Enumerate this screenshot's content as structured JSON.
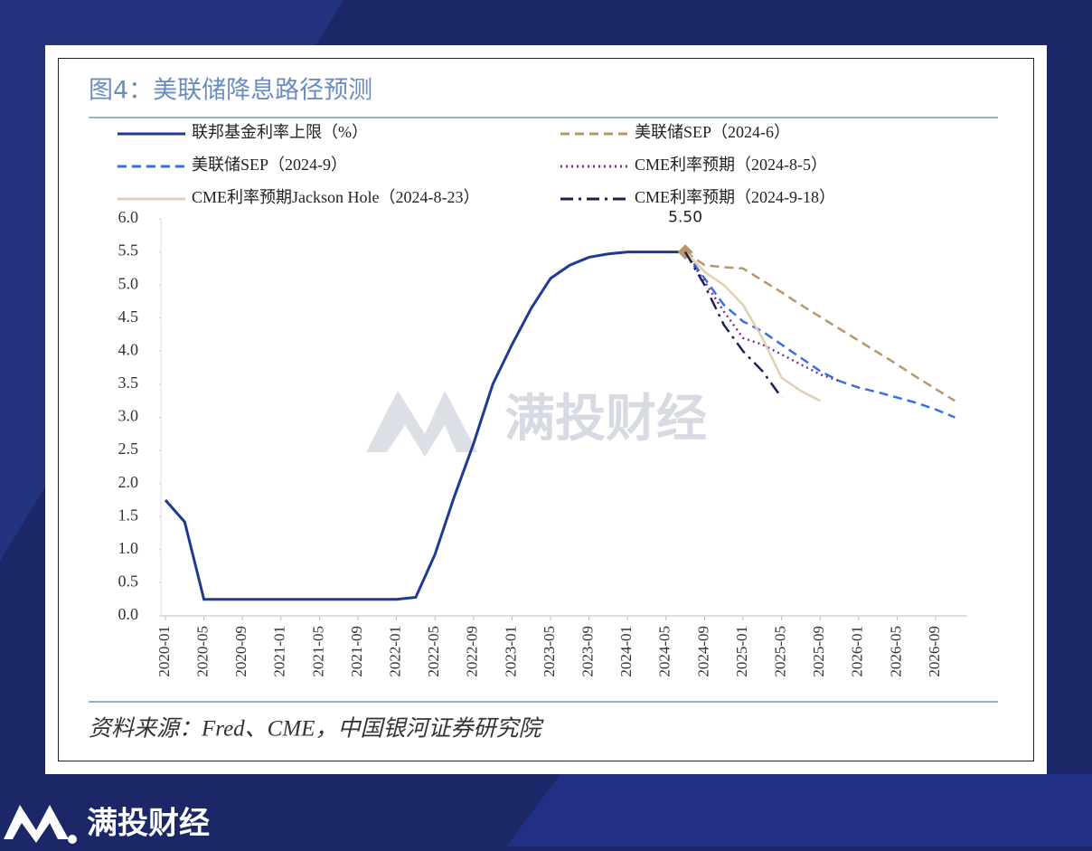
{
  "chart_data": {
    "type": "line",
    "title": "图4：美联储降息路径预测",
    "source": "资料来源：Fred、CME，中国银河证券研究院",
    "watermark": "满投财经",
    "brand": "满投财经",
    "categories": [
      "2020-01",
      null,
      "2020-05",
      null,
      "2020-09",
      null,
      "2021-01",
      null,
      "2021-05",
      null,
      "2021-09",
      null,
      "2022-01",
      null,
      "2022-05",
      null,
      "2022-09",
      null,
      "2023-01",
      null,
      "2023-05",
      null,
      "2023-09",
      null,
      "2024-01",
      null,
      "2024-05",
      null,
      "2024-09",
      null,
      "2025-01",
      null,
      "2025-05",
      null,
      "2025-09",
      null,
      "2026-01",
      null,
      "2026-05",
      null,
      "2026-09",
      null
    ],
    "ylim": [
      0,
      6
    ],
    "yticks": [
      {
        "value": 0,
        "label": "0.0"
      },
      {
        "value": 0.5,
        "label": "0.5"
      },
      {
        "value": 1,
        "label": "1.0"
      },
      {
        "value": 1.5,
        "label": "1.5"
      },
      {
        "value": 2,
        "label": "2.0"
      },
      {
        "value": 2.5,
        "label": "2.5"
      },
      {
        "value": 3,
        "label": "3.0"
      },
      {
        "value": 3.5,
        "label": "3.5"
      },
      {
        "value": 4,
        "label": "4.0"
      },
      {
        "value": 4.5,
        "label": "4.5"
      },
      {
        "value": 5,
        "label": "5.0"
      },
      {
        "value": 5.5,
        "label": "5.5"
      },
      {
        "value": 6,
        "label": "6.0"
      }
    ],
    "series": [
      {
        "name": "联邦基金利率上限（%）",
        "color": "#1f3a93",
        "dash": "solid",
        "values": [
          1.75,
          1.42,
          0.25,
          0.25,
          0.25,
          0.25,
          0.25,
          0.25,
          0.25,
          0.25,
          0.25,
          0.25,
          0.25,
          0.28,
          0.93,
          1.8,
          2.6,
          3.5,
          4.1,
          4.65,
          5.1,
          5.3,
          5.42,
          5.47,
          5.5,
          5.5,
          5.5,
          5.5,
          null,
          null,
          null,
          null,
          null,
          null,
          null,
          null,
          null,
          null,
          null,
          null,
          null,
          null
        ],
        "value_labels": [
          null,
          null,
          null,
          null,
          null,
          null,
          null,
          null,
          null,
          null,
          null,
          null,
          null,
          null,
          null,
          null,
          null,
          null,
          null,
          null,
          null,
          null,
          null,
          null,
          null,
          null,
          null,
          "5.50",
          null,
          null,
          null,
          null,
          null,
          null,
          null,
          null,
          null,
          null,
          null,
          null,
          null,
          null
        ]
      },
      {
        "name": "美联储SEP（2024-6）",
        "color": "#b8976a",
        "dash": "dashed",
        "values": [
          null,
          null,
          null,
          null,
          null,
          null,
          null,
          null,
          null,
          null,
          null,
          null,
          null,
          null,
          null,
          null,
          null,
          null,
          null,
          null,
          null,
          null,
          null,
          null,
          null,
          null,
          null,
          5.5,
          5.3,
          5.27,
          5.25,
          5.07,
          4.89,
          4.7,
          4.52,
          4.34,
          4.16,
          3.98,
          3.8,
          3.61,
          3.43,
          3.25
        ]
      },
      {
        "name": "美联储SEP（2024-9）",
        "color": "#3b6fe0",
        "dash": "dashed",
        "values": [
          null,
          null,
          null,
          null,
          null,
          null,
          null,
          null,
          null,
          null,
          null,
          null,
          null,
          null,
          null,
          null,
          null,
          null,
          null,
          null,
          null,
          null,
          null,
          null,
          null,
          null,
          null,
          5.5,
          5.1,
          4.7,
          4.45,
          4.3,
          4.1,
          3.9,
          3.7,
          3.55,
          3.45,
          3.38,
          3.3,
          3.22,
          3.12,
          3.0
        ]
      },
      {
        "name": "CME利率预期（2024-8-5）",
        "color": "#7a2ea0",
        "dash": "dotted",
        "values": [
          null,
          null,
          null,
          null,
          null,
          null,
          null,
          null,
          null,
          null,
          null,
          null,
          null,
          null,
          null,
          null,
          null,
          null,
          null,
          null,
          null,
          null,
          null,
          null,
          null,
          null,
          null,
          5.5,
          5.05,
          4.6,
          4.2,
          4.1,
          3.95,
          3.8,
          3.65,
          3.55,
          null,
          null,
          null,
          null,
          null,
          null
        ]
      },
      {
        "name": "CME利率预期Jackson Hole（2024-8-23）",
        "color": "#e2cfb2",
        "dash": "solid",
        "values": [
          null,
          null,
          null,
          null,
          null,
          null,
          null,
          null,
          null,
          null,
          null,
          null,
          null,
          null,
          null,
          null,
          null,
          null,
          null,
          null,
          null,
          null,
          null,
          null,
          null,
          null,
          null,
          5.5,
          5.2,
          5.0,
          4.7,
          4.2,
          3.6,
          3.4,
          3.25,
          null,
          null,
          null,
          null,
          null,
          null,
          null
        ]
      },
      {
        "name": "CME利率预期（2024-9-18）",
        "color": "#1e2052",
        "dash": "dashdot",
        "values": [
          null,
          null,
          null,
          null,
          null,
          null,
          null,
          null,
          null,
          null,
          null,
          null,
          null,
          null,
          null,
          null,
          null,
          null,
          null,
          null,
          null,
          null,
          null,
          null,
          null,
          null,
          null,
          5.5,
          5.0,
          4.4,
          4.0,
          3.7,
          3.3,
          null,
          null,
          null,
          null,
          null,
          null,
          null,
          null,
          null
        ]
      }
    ]
  }
}
